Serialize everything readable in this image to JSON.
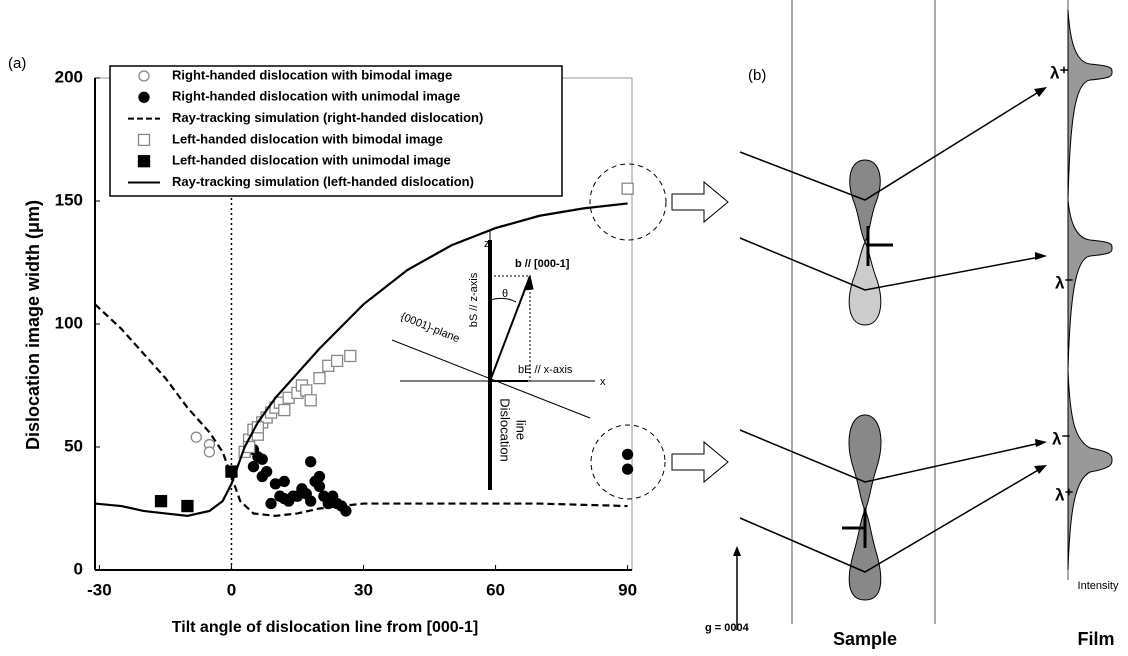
{
  "panel_label": "(a)",
  "chart_data": {
    "type": "scatter",
    "x_label": "Tilt angle of dislocation line from [000-1]",
    "y_label": "Dislocation image width (μm)",
    "xlim": [
      -31,
      91
    ],
    "ylim": [
      0,
      200
    ],
    "xticks": [
      -30,
      0,
      30,
      60,
      90
    ],
    "yticks": [
      0,
      50,
      100,
      150,
      200
    ],
    "reference_x": 0,
    "series": [
      {
        "name": "Right-handed dislocation with bimodal image",
        "kind": "points",
        "marker": "circle-open",
        "color": "#888888",
        "x": [
          -8,
          -5,
          -5
        ],
        "values": [
          54,
          51,
          48
        ]
      },
      {
        "name": "Right-handed dislocation with unimodal image",
        "kind": "points",
        "marker": "circle-filled",
        "color": "#000000",
        "x": [
          5,
          6,
          7,
          8,
          5,
          7,
          10,
          9,
          11,
          12,
          13,
          14,
          15,
          16,
          17,
          18,
          18,
          19,
          20,
          21,
          22,
          23,
          24,
          25,
          26,
          20,
          12,
          90,
          90
        ],
        "values": [
          49,
          46,
          45,
          40,
          42,
          38,
          35,
          27,
          30,
          29,
          28,
          30,
          30,
          33,
          31,
          44,
          28,
          36,
          34,
          30,
          27,
          30,
          27,
          26,
          24,
          38,
          36,
          47,
          41
        ]
      },
      {
        "name": "Ray-tracking simulation (right-handed dislocation)",
        "kind": "line",
        "dash": true,
        "color": "#000000",
        "x": [
          -31,
          -25,
          -20,
          -15,
          -10,
          -5,
          -2,
          0,
          2,
          5,
          10,
          15,
          20,
          30,
          50,
          70,
          90
        ],
        "values": [
          108,
          98,
          88,
          78,
          66,
          56,
          48,
          38,
          28,
          23,
          22,
          23,
          25,
          27,
          27,
          27,
          26
        ]
      },
      {
        "name": "Left-handed dislocation with bimodal image",
        "kind": "points",
        "marker": "square-open",
        "color": "#888888",
        "x": [
          3,
          4,
          5,
          6,
          7,
          8,
          9,
          10,
          11,
          12,
          13,
          15,
          16,
          17,
          18,
          20,
          22,
          24,
          27,
          90,
          4,
          6
        ],
        "values": [
          48,
          53,
          57,
          55,
          60,
          62,
          64,
          66,
          68,
          65,
          70,
          72,
          75,
          73,
          69,
          78,
          83,
          85,
          87,
          155,
          50,
          58
        ]
      },
      {
        "name": "Left-handed dislocation with unimodal image",
        "kind": "points",
        "marker": "square-filled",
        "color": "#000000",
        "x": [
          -16,
          -10,
          0
        ],
        "values": [
          28,
          26,
          40
        ]
      },
      {
        "name": "Ray-tracking simulation (left-handed dislocation)",
        "kind": "line",
        "dash": false,
        "color": "#000000",
        "x": [
          -31,
          -25,
          -20,
          -15,
          -10,
          -5,
          -2,
          0,
          3,
          6,
          10,
          20,
          30,
          40,
          50,
          60,
          70,
          80,
          90
        ],
        "values": [
          27,
          26,
          24,
          23,
          22,
          24,
          28,
          35,
          50,
          60,
          70,
          90,
          108,
          122,
          132,
          139,
          144,
          147,
          149
        ]
      }
    ]
  },
  "inset": {
    "z": "z",
    "x": "x",
    "b": "b // [000-1]",
    "theta": "θ",
    "bs": "bS // z-axis",
    "be": "bE // x-axis",
    "plane": "{0001}-plane",
    "line1": "Dislocation",
    "line2": "line"
  },
  "panel_b": {
    "label": "(b)",
    "lambda_top_plus": "λ⁺",
    "lambda_top_minus": "λ⁻",
    "lambda_bottom_minus": "λ⁻",
    "lambda_bottom_plus": "λ⁺",
    "g": "g = 0004",
    "sample": "Sample",
    "film": "Film",
    "intensity": "Intensity"
  }
}
